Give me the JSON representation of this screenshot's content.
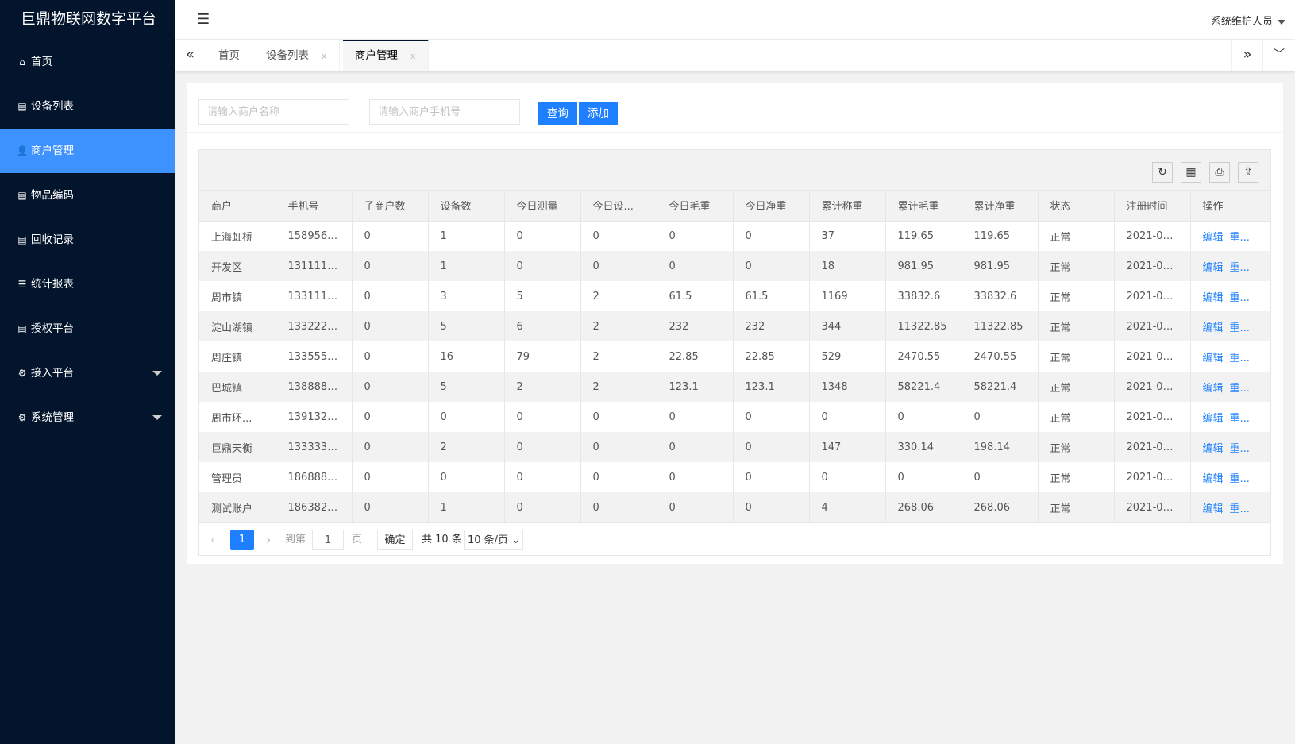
{
  "app_title": "巨鼎物联网数字平台",
  "sidebar": {
    "items": [
      {
        "label": "首页",
        "icon": "home-icon"
      },
      {
        "label": "设备列表",
        "icon": "list-icon"
      },
      {
        "label": "商户管理",
        "icon": "user-icon",
        "active": true
      },
      {
        "label": "物品编码",
        "icon": "list-icon"
      },
      {
        "label": "回收记录",
        "icon": "list-icon"
      },
      {
        "label": "统计报表",
        "icon": "menu-icon"
      },
      {
        "label": "授权平台",
        "icon": "list-icon"
      },
      {
        "label": "接入平台",
        "icon": "gear-icon",
        "expandable": true
      },
      {
        "label": "系统管理",
        "icon": "gear-icon",
        "expandable": true
      }
    ]
  },
  "header": {
    "user": "系统维护人员"
  },
  "tabs": [
    {
      "label": "首页"
    },
    {
      "label": "设备列表",
      "close": "x"
    },
    {
      "label": "商户管理",
      "close": "x",
      "active": true
    }
  ],
  "search": {
    "name_placeholder": "请输入商户名称",
    "phone_placeholder": "请输入商户手机号",
    "query": "查询",
    "add": "添加"
  },
  "table": {
    "columns": [
      "商户",
      "手机号",
      "子商户数",
      "设备数",
      "今日测量",
      "今日设...",
      "今日毛重",
      "今日净重",
      "累计称重",
      "累计毛重",
      "累计净重",
      "状态",
      "注册时间",
      "操作"
    ],
    "rows": [
      [
        "上海虹桥",
        "1589566...",
        "0",
        "1",
        "0",
        "0",
        "0",
        "0",
        "37",
        "119.65",
        "119.65",
        "正常",
        "2021-05..."
      ],
      [
        "开发区",
        "1311111...",
        "0",
        "1",
        "0",
        "0",
        "0",
        "0",
        "18",
        "981.95",
        "981.95",
        "正常",
        "2021-05..."
      ],
      [
        "周市镇",
        "1331111...",
        "0",
        "3",
        "5",
        "2",
        "61.5",
        "61.5",
        "1169",
        "33832.6",
        "33832.6",
        "正常",
        "2021-05..."
      ],
      [
        "淀山湖镇",
        "1332222...",
        "0",
        "5",
        "6",
        "2",
        "232",
        "232",
        "344",
        "11322.85",
        "11322.85",
        "正常",
        "2021-05..."
      ],
      [
        "周庄镇",
        "1335555...",
        "0",
        "16",
        "79",
        "2",
        "22.85",
        "22.85",
        "529",
        "2470.55",
        "2470.55",
        "正常",
        "2021-05..."
      ],
      [
        "巴城镇",
        "1388888...",
        "0",
        "5",
        "2",
        "2",
        "123.1",
        "123.1",
        "1348",
        "58221.4",
        "58221.4",
        "正常",
        "2021-05..."
      ],
      [
        "周市环...",
        "1391323...",
        "0",
        "0",
        "0",
        "0",
        "0",
        "0",
        "0",
        "0",
        "0",
        "正常",
        "2021-05..."
      ],
      [
        "巨鼎天衡",
        "1333333...",
        "0",
        "2",
        "0",
        "0",
        "0",
        "0",
        "147",
        "330.14",
        "198.14",
        "正常",
        "2021-05..."
      ],
      [
        "管理员",
        "1868888...",
        "0",
        "0",
        "0",
        "0",
        "0",
        "0",
        "0",
        "0",
        "0",
        "正常",
        "2021-05..."
      ],
      [
        "测试账户",
        "1863820...",
        "0",
        "1",
        "0",
        "0",
        "0",
        "0",
        "4",
        "268.06",
        "268.06",
        "正常",
        "2021-05..."
      ]
    ],
    "actions": [
      "编辑",
      "重..."
    ]
  },
  "pagination": {
    "current": "1",
    "goto_label": "到第",
    "goto_value": "1",
    "page_label": "页",
    "confirm": "确定",
    "total": "共 10 条",
    "page_size": "10 条/页"
  },
  "colors": {
    "sidebar": "#03152c",
    "accent": "#1e80ff",
    "active_menu": "#3d92ff"
  }
}
